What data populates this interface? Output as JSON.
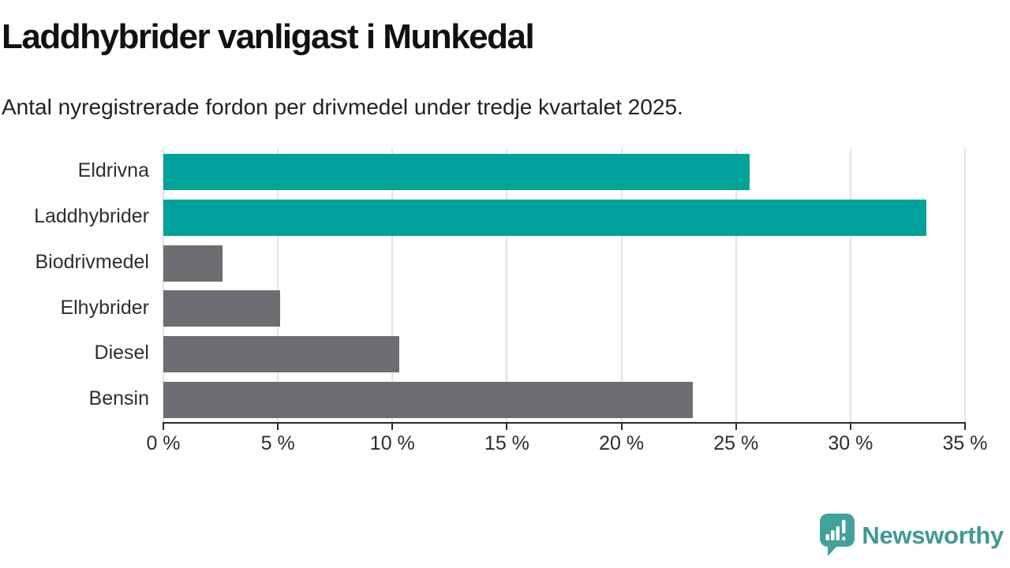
{
  "header": {
    "title": "Laddhybrider vanligast i Munkedal",
    "subtitle": "Antal nyregistrerade fordon per drivmedel under tredje kvartalet 2025."
  },
  "chart_data": {
    "type": "bar",
    "orientation": "horizontal",
    "categories": [
      "Eldrivna",
      "Laddhybrider",
      "Biodrivmedel",
      "Elhybrider",
      "Diesel",
      "Bensin"
    ],
    "values": [
      25.6,
      33.3,
      2.6,
      5.1,
      10.3,
      23.1
    ],
    "value_unit": "%",
    "bar_colors": [
      "#00a29b",
      "#00a29b",
      "#6e6d71",
      "#6e6d71",
      "#6e6d71",
      "#6e6d71"
    ],
    "xlim": [
      0,
      35
    ],
    "x_tick_values": [
      0,
      5,
      10,
      15,
      20,
      25,
      30,
      35
    ],
    "x_tick_labels": [
      "0 %",
      "5 %",
      "10 %",
      "15 %",
      "20 %",
      "25 %",
      "30 %",
      "35 %"
    ],
    "grid": "vertical",
    "legend": "none",
    "title": "Laddhybrider vanligast i Munkedal",
    "xlabel": "",
    "ylabel": ""
  },
  "colors": {
    "highlight": "#00a29b",
    "neutral": "#6e6d71",
    "gridline": "#e3e3e3",
    "axis": "#2b2b2b",
    "text": "#2e2e2e",
    "brand": "#3d9a96"
  },
  "footer": {
    "logo_text": "Newsworthy",
    "logo_icon": "bar-chart-speech-bubble-icon"
  }
}
